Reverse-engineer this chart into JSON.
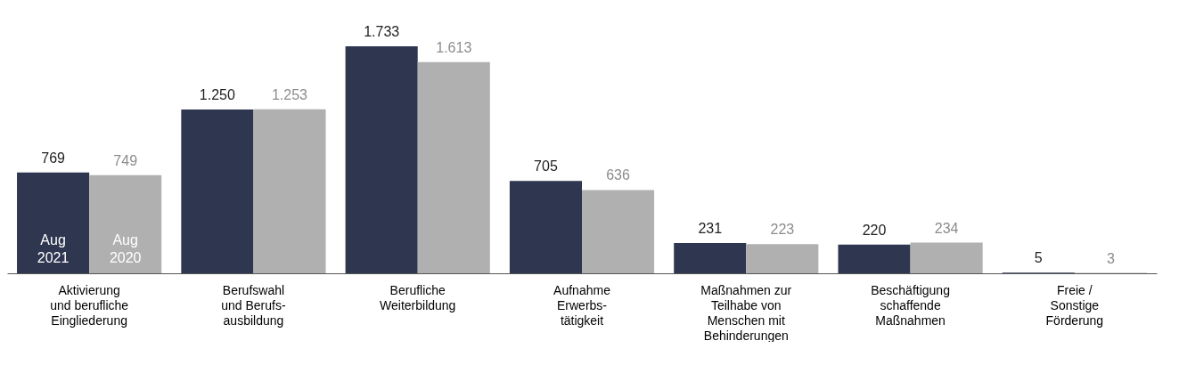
{
  "chart_data": {
    "type": "bar",
    "categories": [
      "Aktivierung\nund berufliche\nEingliederung",
      "Berufswahl\nund Berufs-\nausbildung",
      "Berufliche\nWeiterbildung",
      "Aufnahme\nErwerbs-\ntätigkeit",
      "Maßnahmen zur\nTeilhabe von\nMenschen mit\nBehinderungen",
      "Beschäftigung\nschaffende\nMaßnahmen",
      "Freie /\nSonstige\nFörderung"
    ],
    "series": [
      {
        "name": "Aug 2021",
        "color": "#2e3650",
        "values": [
          769,
          1250,
          1733,
          705,
          231,
          220,
          5
        ],
        "value_labels": [
          "769",
          "1.250",
          "1.733",
          "705",
          "231",
          "220",
          "5"
        ]
      },
      {
        "name": "Aug 2020",
        "color": "#b0b0b0",
        "values": [
          749,
          1253,
          1613,
          636,
          223,
          234,
          3
        ],
        "value_labels": [
          "749",
          "1.253",
          "1.613",
          "636",
          "223",
          "234",
          "3"
        ]
      }
    ],
    "legend": false,
    "grid": false
  }
}
